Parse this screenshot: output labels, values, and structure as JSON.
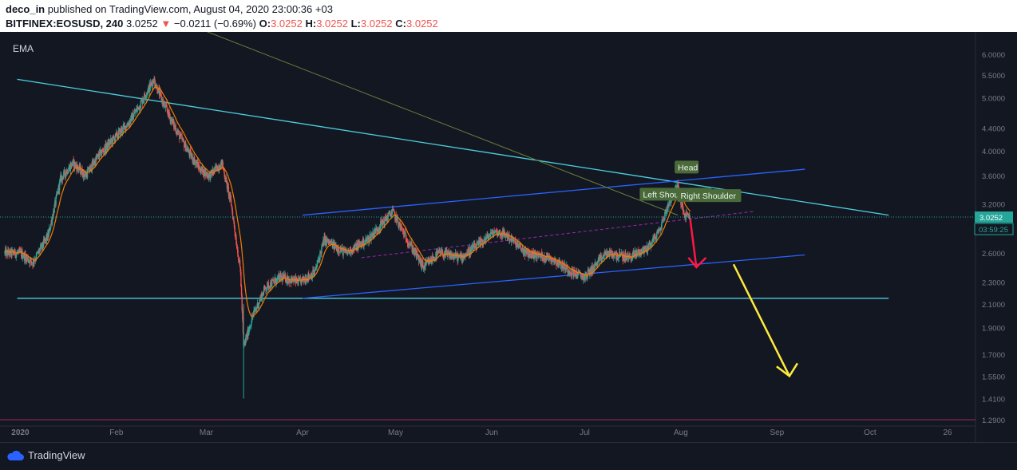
{
  "header": {
    "author": "deco_in",
    "published": "published on TradingView.com, August 04, 2020 23:00:36 +03",
    "symbol": "BITFINEX:EOSUSD, 240",
    "last": "3.0252",
    "change": "−0.0211 (−0.69%)",
    "o_label": "O:",
    "o": "3.0252",
    "h_label": "H:",
    "h": "3.0252",
    "l_label": "L:",
    "l": "3.0252",
    "c_label": "C:",
    "c": "3.0252"
  },
  "indicator_label": "EMA",
  "price_tag": "3.0252",
  "countdown_tag": "03:59:25",
  "footer": {
    "brand": "TradingView"
  },
  "colors": {
    "background": "#131722",
    "up": "#26a69a",
    "down": "#ef5350",
    "ema": "#f57c00",
    "cyan": "#4dd0e1",
    "blue": "#2962ff",
    "yellow": "#ffeb3b",
    "annotation": "#4a6a3a"
  },
  "chart_data": {
    "type": "candlestick",
    "y_scale": "log",
    "ylim": [
      1.29,
      6.5
    ],
    "price_ticks": [
      "6.0000",
      "5.5000",
      "5.0000",
      "4.4000",
      "4.0000",
      "3.6000",
      "3.2000",
      "2.6000",
      "2.3000",
      "2.1000",
      "1.9000",
      "1.7000",
      "1.5500",
      "1.4100",
      "1.2900"
    ],
    "x_labels": [
      "2020",
      "Feb",
      "Mar",
      "Apr",
      "May",
      "Jun",
      "Jul",
      "Aug",
      "Sep",
      "Oct",
      "26"
    ],
    "annotations": [
      "Head",
      "Left Shoulder",
      "Right Shoulder"
    ],
    "last_price": 3.0252,
    "series": [
      {
        "name": "EOSUSD",
        "close_path": [
          [
            "2020-01-01",
            2.6
          ],
          [
            "2020-01-05",
            2.5
          ],
          [
            "2020-01-10",
            2.8
          ],
          [
            "2020-01-14",
            3.55
          ],
          [
            "2020-01-18",
            3.8
          ],
          [
            "2020-01-22",
            3.6
          ],
          [
            "2020-01-26",
            3.9
          ],
          [
            "2020-01-31",
            4.2
          ],
          [
            "2020-02-05",
            4.5
          ],
          [
            "2020-02-09",
            4.9
          ],
          [
            "2020-02-13",
            5.4
          ],
          [
            "2020-02-16",
            4.9
          ],
          [
            "2020-02-20",
            4.4
          ],
          [
            "2020-02-24",
            4.0
          ],
          [
            "2020-02-28",
            3.7
          ],
          [
            "2020-03-02",
            3.6
          ],
          [
            "2020-03-06",
            3.8
          ],
          [
            "2020-03-09",
            3.2
          ],
          [
            "2020-03-12",
            2.4
          ],
          [
            "2020-03-13",
            1.75
          ],
          [
            "2020-03-16",
            2.0
          ],
          [
            "2020-03-20",
            2.25
          ],
          [
            "2020-03-25",
            2.35
          ],
          [
            "2020-03-31",
            2.3
          ],
          [
            "2020-04-05",
            2.4
          ],
          [
            "2020-04-08",
            2.75
          ],
          [
            "2020-04-15",
            2.6
          ],
          [
            "2020-04-22",
            2.75
          ],
          [
            "2020-04-30",
            3.1
          ],
          [
            "2020-05-04",
            2.8
          ],
          [
            "2020-05-10",
            2.45
          ],
          [
            "2020-05-15",
            2.6
          ],
          [
            "2020-05-22",
            2.55
          ],
          [
            "2020-05-28",
            2.7
          ],
          [
            "2020-06-02",
            2.85
          ],
          [
            "2020-06-06",
            2.8
          ],
          [
            "2020-06-12",
            2.6
          ],
          [
            "2020-06-20",
            2.55
          ],
          [
            "2020-06-27",
            2.4
          ],
          [
            "2020-07-01",
            2.35
          ],
          [
            "2020-07-08",
            2.6
          ],
          [
            "2020-07-15",
            2.55
          ],
          [
            "2020-07-21",
            2.65
          ],
          [
            "2020-07-25",
            2.85
          ],
          [
            "2020-07-28",
            3.2
          ],
          [
            "2020-07-31",
            3.45
          ],
          [
            "2020-08-02",
            3.05
          ],
          [
            "2020-08-04",
            3.0252
          ]
        ]
      }
    ],
    "drawings": [
      {
        "name": "resistance-trendline",
        "color": "#4dd0e1",
        "from": [
          "2019-12-31",
          5.4
        ],
        "to": [
          "2020-10-07",
          3.05
        ]
      },
      {
        "name": "support-line",
        "color": "#4dd0e1",
        "from": [
          "2019-12-31",
          2.15
        ],
        "to": [
          "2020-10-07",
          2.15
        ]
      },
      {
        "name": "upper-channel",
        "color": "#2962ff",
        "from": [
          "2020-04-01",
          3.05
        ],
        "to": [
          "2020-09-10",
          3.7
        ]
      },
      {
        "name": "lower-channel",
        "color": "#2962ff",
        "from": [
          "2020-04-01",
          2.15
        ],
        "to": [
          "2020-09-10",
          2.58
        ]
      }
    ]
  }
}
